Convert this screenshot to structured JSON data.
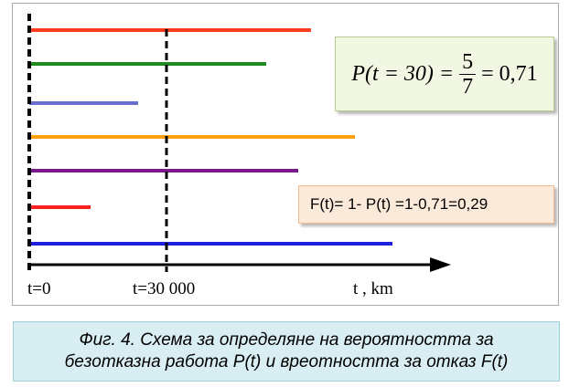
{
  "formula": {
    "lhs": "P(t = 30) =",
    "numerator": "5",
    "denominator": "7",
    "rhs": "= 0,71"
  },
  "failure_formula": "F(t)= 1- P(t) =1-0,71=0,29",
  "axis": {
    "label_t0": "t=0",
    "label_t30": "t=30 000",
    "label_unit": "t , km"
  },
  "caption": {
    "line1": "Фиг. 4. Схема за определяне на вероятността за",
    "line2": "безотказна работа P(t) и вреотността за отказ F(t)"
  },
  "colors": {
    "axis": "#000000",
    "bars": [
      "#ff3b1f",
      "#1f8a1f",
      "#6a6fcf",
      "#ffa010",
      "#7a1a8a",
      "#ff1f1f",
      "#1f1fe0"
    ]
  }
}
